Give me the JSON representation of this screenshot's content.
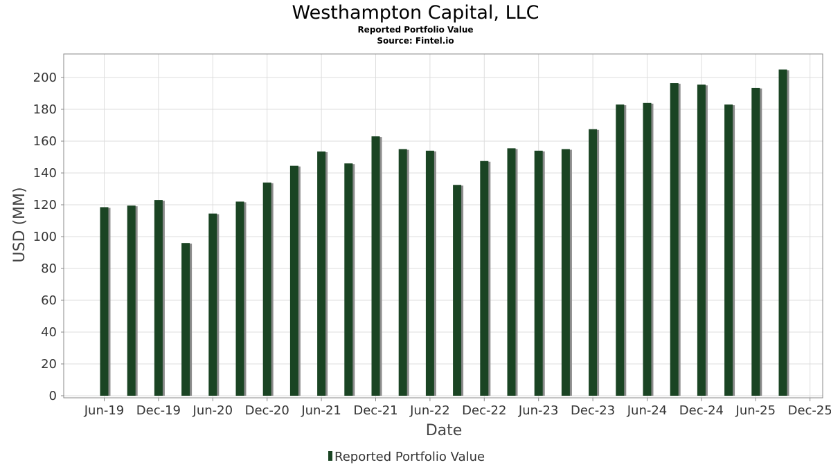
{
  "chart_data": {
    "type": "bar",
    "title": "Westhampton Capital, LLC",
    "subtitle": "Reported Portfolio Value",
    "source": "Source: Fintel.io",
    "xlabel": "Date",
    "ylabel": "USD (MM)",
    "ylim": [
      0,
      215
    ],
    "yticks": [
      0,
      20,
      40,
      60,
      80,
      100,
      120,
      140,
      160,
      180,
      200
    ],
    "grid": true,
    "x_tick_labels": [
      "Jun-19",
      "Dec-19",
      "Jun-20",
      "Dec-20",
      "Jun-21",
      "Dec-21",
      "Jun-22",
      "Dec-22",
      "Jun-23",
      "Dec-23",
      "Jun-24",
      "Dec-24",
      "Jun-25",
      "Dec-25"
    ],
    "categories": [
      "2019-Q2",
      "2019-Q3",
      "2019-Q4",
      "2020-Q1",
      "2020-Q2",
      "2020-Q3",
      "2020-Q4",
      "2021-Q1",
      "2021-Q2",
      "2021-Q3",
      "2021-Q4",
      "2022-Q1",
      "2022-Q2",
      "2022-Q3",
      "2022-Q4",
      "2023-Q1",
      "2023-Q2",
      "2023-Q3",
      "2023-Q4",
      "2024-Q1",
      "2024-Q2",
      "2024-Q3",
      "2024-Q4",
      "2025-Q1",
      "2025-Q2",
      "2025-Q3"
    ],
    "series": [
      {
        "name": "Reported Portfolio Value",
        "color": "#1a4423",
        "values": [
          118.5,
          119.5,
          123,
          96,
          114.5,
          122,
          134,
          144.5,
          153.5,
          146,
          163,
          155,
          154,
          132.5,
          147.5,
          155.5,
          154,
          155,
          167.5,
          183,
          184,
          196.5,
          195.5,
          183,
          193.5,
          205
        ]
      }
    ],
    "legend": {
      "position": "bottom",
      "labels": [
        "Reported Portfolio Value"
      ]
    }
  }
}
